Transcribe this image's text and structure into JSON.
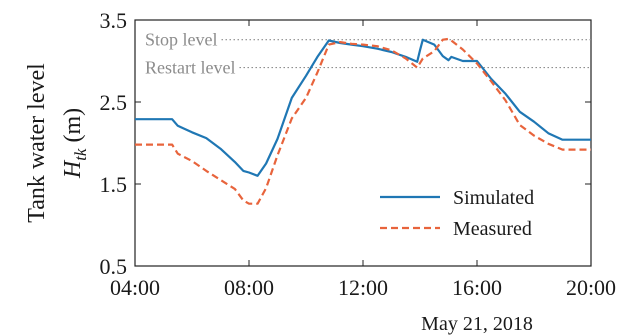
{
  "chart_data": {
    "type": "line",
    "ylabel_line1": "Tank water level",
    "ylabel_var": "H",
    "ylabel_sub": "tk",
    "ylabel_unit": " (m)",
    "xlabel_date": "May 21, 2018",
    "xlim": [
      4,
      20
    ],
    "ylim": [
      0.5,
      3.5
    ],
    "x_ticks": [
      4,
      8,
      12,
      16,
      20
    ],
    "x_tick_labels": [
      "04:00",
      "08:00",
      "12:00",
      "16:00",
      "20:00"
    ],
    "y_ticks": [
      0.5,
      1.5,
      2.5,
      3.5
    ],
    "y_tick_labels": [
      "0.5",
      "1.5",
      "2.5",
      "3.5"
    ],
    "reference_lines": [
      {
        "label": "Stop level",
        "y": 3.26
      },
      {
        "label": "Restart level",
        "y": 2.92
      }
    ],
    "legend_position": "lower-right",
    "series": [
      {
        "name": "Simulated",
        "color": "#1f77b4",
        "style": "solid",
        "x": [
          4.0,
          5.3,
          5.5,
          6.0,
          6.5,
          7.0,
          7.5,
          7.8,
          8.0,
          8.3,
          8.6,
          9.0,
          9.5,
          10.0,
          10.4,
          10.8,
          11.2,
          11.6,
          12.0,
          12.5,
          13.0,
          13.5,
          13.9,
          14.0,
          14.1,
          14.5,
          14.8,
          15.0,
          15.1,
          15.5,
          16.0,
          16.5,
          17.0,
          17.5,
          18.0,
          18.5,
          19.0,
          19.5,
          20.0
        ],
        "y": [
          2.29,
          2.29,
          2.21,
          2.13,
          2.06,
          1.93,
          1.77,
          1.66,
          1.64,
          1.6,
          1.75,
          2.05,
          2.55,
          2.82,
          3.05,
          3.25,
          3.22,
          3.2,
          3.18,
          3.15,
          3.11,
          3.05,
          2.99,
          3.13,
          3.26,
          3.2,
          3.06,
          3.01,
          3.05,
          3.0,
          3.0,
          2.78,
          2.6,
          2.38,
          2.26,
          2.12,
          2.04,
          2.04,
          2.04
        ]
      },
      {
        "name": "Measured",
        "color": "#e8643c",
        "style": "dashed",
        "x": [
          4.0,
          5.3,
          5.5,
          6.0,
          6.5,
          7.0,
          7.5,
          7.8,
          8.0,
          8.3,
          8.6,
          9.0,
          9.5,
          10.0,
          10.4,
          10.8,
          11.2,
          11.6,
          12.0,
          12.5,
          13.0,
          13.5,
          13.9,
          14.1,
          14.5,
          14.8,
          15.0,
          15.1,
          15.5,
          16.0,
          16.5,
          17.0,
          17.5,
          18.0,
          18.5,
          19.0,
          19.5,
          20.0
        ],
        "y": [
          1.98,
          1.98,
          1.87,
          1.78,
          1.66,
          1.55,
          1.44,
          1.3,
          1.26,
          1.26,
          1.45,
          1.85,
          2.3,
          2.55,
          2.86,
          3.2,
          3.23,
          3.21,
          3.2,
          3.18,
          3.13,
          3.03,
          2.92,
          3.03,
          3.12,
          3.26,
          3.27,
          3.25,
          3.14,
          2.97,
          2.75,
          2.52,
          2.22,
          2.09,
          1.99,
          1.92,
          1.92,
          1.92
        ]
      }
    ]
  }
}
